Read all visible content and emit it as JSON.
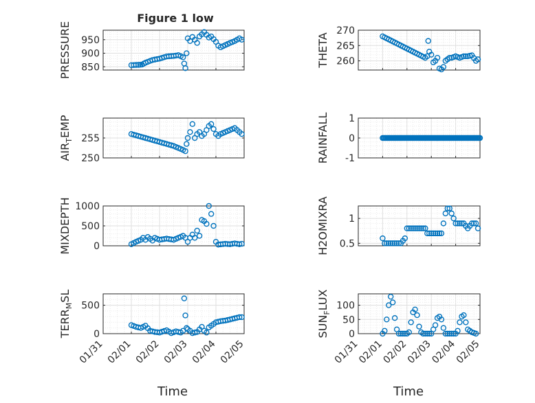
{
  "figure": {
    "title": "Figure 1 low",
    "xlabel": "Time",
    "x_tick_labels": [
      "01/31",
      "02/01",
      "02/02",
      "02/03",
      "02/04",
      "02/05"
    ],
    "marker_color": "#0072BD",
    "marker": "open-circle"
  },
  "chart_data": [
    {
      "type": "scatter",
      "ylabel": "PRESSURE",
      "yticks": [
        "850",
        "900",
        "950"
      ],
      "ylim": [
        838,
        985
      ],
      "grid": true,
      "x_axis": "date",
      "xlim": [
        "01/31",
        "02/05"
      ],
      "points": [
        [
          "02/01 00:00",
          856
        ],
        [
          "02/01 06:00",
          857
        ],
        [
          "02/01 09:00",
          858
        ],
        [
          "02/01 12:00",
          865
        ],
        [
          "02/01 18:00",
          875
        ],
        [
          "02/02 00:00",
          880
        ],
        [
          "02/02 06:00",
          888
        ],
        [
          "02/02 12:00",
          890
        ],
        [
          "02/02 16:00",
          893
        ],
        [
          "02/02 20:00",
          885
        ],
        [
          "02/02 21:00",
          862
        ],
        [
          "02/02 22:00",
          845
        ],
        [
          "02/02 23:00",
          900
        ],
        [
          "02/03 00:00",
          955
        ],
        [
          "02/03 02:00",
          945
        ],
        [
          "02/03 04:00",
          960
        ],
        [
          "02/03 06:00",
          950
        ],
        [
          "02/03 08:00",
          938
        ],
        [
          "02/03 10:00",
          962
        ],
        [
          "02/03 12:00",
          970
        ],
        [
          "02/03 14:00",
          978
        ],
        [
          "02/03 16:00",
          968
        ],
        [
          "02/03 18:00",
          958
        ],
        [
          "02/03 20:00",
          962
        ],
        [
          "02/04 00:00",
          942
        ],
        [
          "02/04 02:00",
          928
        ],
        [
          "02/04 04:00",
          922
        ],
        [
          "02/04 08:00",
          930
        ],
        [
          "02/04 12:00",
          938
        ],
        [
          "02/04 16:00",
          945
        ],
        [
          "02/04 20:00",
          955
        ],
        [
          "02/04 22:00",
          950
        ]
      ]
    },
    {
      "type": "scatter",
      "ylabel": "THETA",
      "yticks": [
        "260",
        "265",
        "270"
      ],
      "ylim": [
        257,
        270
      ],
      "grid": true,
      "x_axis": "date",
      "xlim": [
        "01/31",
        "02/05"
      ],
      "points": [
        [
          "02/01 00:00",
          268
        ],
        [
          "02/01 06:00",
          267
        ],
        [
          "02/01 12:00",
          266
        ],
        [
          "02/01 18:00",
          265
        ],
        [
          "02/02 00:00",
          264
        ],
        [
          "02/02 06:00",
          263
        ],
        [
          "02/02 12:00",
          262
        ],
        [
          "02/02 18:00",
          261
        ],
        [
          "02/02 20:00",
          261.5
        ],
        [
          "02/02 21:00",
          266.5
        ],
        [
          "02/02 22:00",
          263
        ],
        [
          "02/03 00:00",
          262
        ],
        [
          "02/03 02:00",
          259.5
        ],
        [
          "02/03 04:00",
          260
        ],
        [
          "02/03 06:00",
          261
        ],
        [
          "02/03 08:00",
          257.5
        ],
        [
          "02/03 10:00",
          257.2
        ],
        [
          "02/03 12:00",
          258
        ],
        [
          "02/03 14:00",
          260
        ],
        [
          "02/03 16:00",
          260.5
        ],
        [
          "02/03 18:00",
          261
        ],
        [
          "02/03 20:00",
          261
        ],
        [
          "02/04 00:00",
          261.5
        ],
        [
          "02/04 04:00",
          261
        ],
        [
          "02/04 08:00",
          261.5
        ],
        [
          "02/04 12:00",
          261.5
        ],
        [
          "02/04 16:00",
          261.8
        ],
        [
          "02/04 20:00",
          260
        ],
        [
          "02/04 22:00",
          260.5
        ]
      ]
    },
    {
      "type": "scatter",
      "ylabel": "AIR_TEMP",
      "ylabel_main": "AIR",
      "ylabel_sub": "T",
      "ylabel_rest": "EMP",
      "yticks": [
        "250",
        "255"
      ],
      "ylim": [
        250,
        260
      ],
      "grid": true,
      "x_axis": "date",
      "xlim": [
        "01/31",
        "02/05"
      ],
      "points": [
        [
          "02/01 00:00",
          256
        ],
        [
          "02/01 06:00",
          255.5
        ],
        [
          "02/01 12:00",
          255
        ],
        [
          "02/01 18:00",
          254.5
        ],
        [
          "02/02 00:00",
          254
        ],
        [
          "02/02 06:00",
          253.5
        ],
        [
          "02/02 12:00",
          253
        ],
        [
          "02/02 16:00",
          252.5
        ],
        [
          "02/02 20:00",
          252
        ],
        [
          "02/02 22:00",
          251.7
        ],
        [
          "02/02 23:00",
          253.5
        ],
        [
          "02/03 00:00",
          255
        ],
        [
          "02/03 02:00",
          256.5
        ],
        [
          "02/03 04:00",
          258.5
        ],
        [
          "02/03 06:00",
          255
        ],
        [
          "02/03 08:00",
          256
        ],
        [
          "02/03 10:00",
          256.5
        ],
        [
          "02/03 12:00",
          255.5
        ],
        [
          "02/03 14:00",
          256
        ],
        [
          "02/03 16:00",
          257
        ],
        [
          "02/03 18:00",
          258
        ],
        [
          "02/03 20:00",
          258.5
        ],
        [
          "02/04 00:00",
          256
        ],
        [
          "02/04 02:00",
          255.5
        ],
        [
          "02/04 04:00",
          256
        ],
        [
          "02/04 08:00",
          256.5
        ],
        [
          "02/04 12:00",
          257
        ],
        [
          "02/04 16:00",
          257.5
        ],
        [
          "02/04 20:00",
          256.5
        ],
        [
          "02/04 22:00",
          256
        ]
      ]
    },
    {
      "type": "scatter",
      "ylabel": "RAINFALL",
      "yticks": [
        "-1",
        "0",
        "1"
      ],
      "ylim": [
        -1,
        1
      ],
      "grid": true,
      "x_axis": "date",
      "xlim": [
        "01/31",
        "02/05"
      ],
      "points_constant": 0
    },
    {
      "type": "scatter",
      "ylabel": "MIXDEPTH",
      "yticks": [
        "0",
        "500",
        "1000"
      ],
      "ylim": [
        0,
        1000
      ],
      "grid": true,
      "x_axis": "date",
      "xlim": [
        "01/31",
        "02/05"
      ],
      "points": [
        [
          "02/01 00:00",
          40
        ],
        [
          "02/01 04:00",
          100
        ],
        [
          "02/01 08:00",
          150
        ],
        [
          "02/01 10:00",
          200
        ],
        [
          "02/01 12:00",
          150
        ],
        [
          "02/01 14:00",
          220
        ],
        [
          "02/01 18:00",
          130
        ],
        [
          "02/01 20:00",
          200
        ],
        [
          "02/02 00:00",
          150
        ],
        [
          "02/02 06:00",
          180
        ],
        [
          "02/02 12:00",
          150
        ],
        [
          "02/02 16:00",
          200
        ],
        [
          "02/02 20:00",
          250
        ],
        [
          "02/02 22:00",
          200
        ],
        [
          "02/03 00:00",
          100
        ],
        [
          "02/03 02:00",
          200
        ],
        [
          "02/03 04:00",
          280
        ],
        [
          "02/03 06:00",
          200
        ],
        [
          "02/03 08:00",
          380
        ],
        [
          "02/03 10:00",
          250
        ],
        [
          "02/03 12:00",
          650
        ],
        [
          "02/03 14:00",
          620
        ],
        [
          "02/03 16:00",
          550
        ],
        [
          "02/03 18:00",
          1000
        ],
        [
          "02/03 20:00",
          800
        ],
        [
          "02/03 22:00",
          500
        ],
        [
          "02/04 00:00",
          100
        ],
        [
          "02/04 02:00",
          30
        ],
        [
          "02/04 08:00",
          50
        ],
        [
          "02/04 12:00",
          40
        ],
        [
          "02/04 16:00",
          60
        ],
        [
          "02/04 20:00",
          40
        ],
        [
          "02/04 22:00",
          50
        ]
      ]
    },
    {
      "type": "scatter",
      "ylabel": "H2OMIXRA",
      "yticks": [
        "0.5",
        "1"
      ],
      "ylim": [
        0.45,
        1.25
      ],
      "grid": true,
      "x_axis": "date",
      "xlim": [
        "01/31",
        "02/05"
      ],
      "points": [
        [
          "02/01 00:00",
          0.6
        ],
        [
          "02/01 02:00",
          0.5
        ],
        [
          "02/01 06:00",
          0.5
        ],
        [
          "02/01 12:00",
          0.5
        ],
        [
          "02/01 18:00",
          0.5
        ],
        [
          "02/01 22:00",
          0.6
        ],
        [
          "02/02 00:00",
          0.8
        ],
        [
          "02/02 06:00",
          0.8
        ],
        [
          "02/02 12:00",
          0.8
        ],
        [
          "02/02 18:00",
          0.8
        ],
        [
          "02/02 20:00",
          0.7
        ],
        [
          "02/03 00:00",
          0.7
        ],
        [
          "02/03 06:00",
          0.7
        ],
        [
          "02/03 10:00",
          0.7
        ],
        [
          "02/03 12:00",
          0.9
        ],
        [
          "02/03 14:00",
          1.1
        ],
        [
          "02/03 16:00",
          1.2
        ],
        [
          "02/03 18:00",
          1.2
        ],
        [
          "02/03 20:00",
          1.1
        ],
        [
          "02/03 22:00",
          1
        ],
        [
          "02/04 00:00",
          0.9
        ],
        [
          "02/04 04:00",
          0.9
        ],
        [
          "02/04 08:00",
          0.9
        ],
        [
          "02/04 12:00",
          0.8
        ],
        [
          "02/04 16:00",
          0.9
        ],
        [
          "02/04 20:00",
          0.9
        ],
        [
          "02/04 22:00",
          0.8
        ]
      ]
    },
    {
      "type": "scatter",
      "ylabel": "TERR_MSL",
      "ylabel_main": "TERR",
      "ylabel_sub": "M",
      "ylabel_rest": "SL",
      "yticks": [
        "0",
        "500"
      ],
      "ylim": [
        0,
        700
      ],
      "grid": true,
      "x_axis": "date",
      "xlim": [
        "01/31",
        "02/05"
      ],
      "points": [
        [
          "02/01 00:00",
          150
        ],
        [
          "02/01 04:00",
          120
        ],
        [
          "02/01 08:00",
          100
        ],
        [
          "02/01 12:00",
          140
        ],
        [
          "02/01 16:00",
          50
        ],
        [
          "02/01 20:00",
          30
        ],
        [
          "02/02 00:00",
          20
        ],
        [
          "02/02 06:00",
          60
        ],
        [
          "02/02 10:00",
          10
        ],
        [
          "02/02 14:00",
          40
        ],
        [
          "02/02 18:00",
          20
        ],
        [
          "02/02 20:00",
          50
        ],
        [
          "02/02 21:00",
          620
        ],
        [
          "02/02 22:00",
          320
        ],
        [
          "02/02 23:00",
          100
        ],
        [
          "02/03 00:00",
          80
        ],
        [
          "02/03 02:00",
          50
        ],
        [
          "02/03 04:00",
          10
        ],
        [
          "02/03 08:00",
          30
        ],
        [
          "02/03 12:00",
          120
        ],
        [
          "02/03 14:00",
          50
        ],
        [
          "02/03 16:00",
          20
        ],
        [
          "02/03 18:00",
          110
        ],
        [
          "02/04 00:00",
          200
        ],
        [
          "02/04 04:00",
          220
        ],
        [
          "02/04 08:00",
          230
        ],
        [
          "02/04 12:00",
          250
        ],
        [
          "02/04 16:00",
          270
        ],
        [
          "02/04 20:00",
          290
        ],
        [
          "02/04 22:00",
          290
        ]
      ]
    },
    {
      "type": "scatter",
      "ylabel": "SUN_FLUX",
      "ylabel_main": "SUN",
      "ylabel_sub": "F",
      "ylabel_rest": "LUX",
      "yticks": [
        "0",
        "50",
        "100"
      ],
      "ylim": [
        0,
        140
      ],
      "grid": true,
      "x_axis": "date",
      "xlim": [
        "01/31",
        "02/05"
      ],
      "points": [
        [
          "02/01 00:00",
          0
        ],
        [
          "02/01 02:00",
          10
        ],
        [
          "02/01 04:00",
          50
        ],
        [
          "02/01 06:00",
          100
        ],
        [
          "02/01 08:00",
          130
        ],
        [
          "02/01 10:00",
          110
        ],
        [
          "02/01 12:00",
          55
        ],
        [
          "02/01 14:00",
          15
        ],
        [
          "02/01 16:00",
          0
        ],
        [
          "02/02 00:00",
          0
        ],
        [
          "02/02 02:00",
          5
        ],
        [
          "02/02 04:00",
          40
        ],
        [
          "02/02 06:00",
          75
        ],
        [
          "02/02 08:00",
          85
        ],
        [
          "02/02 10:00",
          65
        ],
        [
          "02/02 12:00",
          25
        ],
        [
          "02/02 14:00",
          5
        ],
        [
          "02/02 16:00",
          0
        ],
        [
          "02/03 00:00",
          0
        ],
        [
          "02/03 04:00",
          30
        ],
        [
          "02/03 06:00",
          55
        ],
        [
          "02/03 08:00",
          60
        ],
        [
          "02/03 10:00",
          50
        ],
        [
          "02/03 12:00",
          20
        ],
        [
          "02/03 14:00",
          0
        ],
        [
          "02/04 00:00",
          0
        ],
        [
          "02/04 02:00",
          10
        ],
        [
          "02/04 04:00",
          40
        ],
        [
          "02/04 06:00",
          60
        ],
        [
          "02/04 08:00",
          65
        ],
        [
          "02/04 10:00",
          40
        ],
        [
          "02/04 12:00",
          15
        ],
        [
          "02/04 16:00",
          5
        ],
        [
          "02/04 20:00",
          0
        ]
      ]
    }
  ]
}
